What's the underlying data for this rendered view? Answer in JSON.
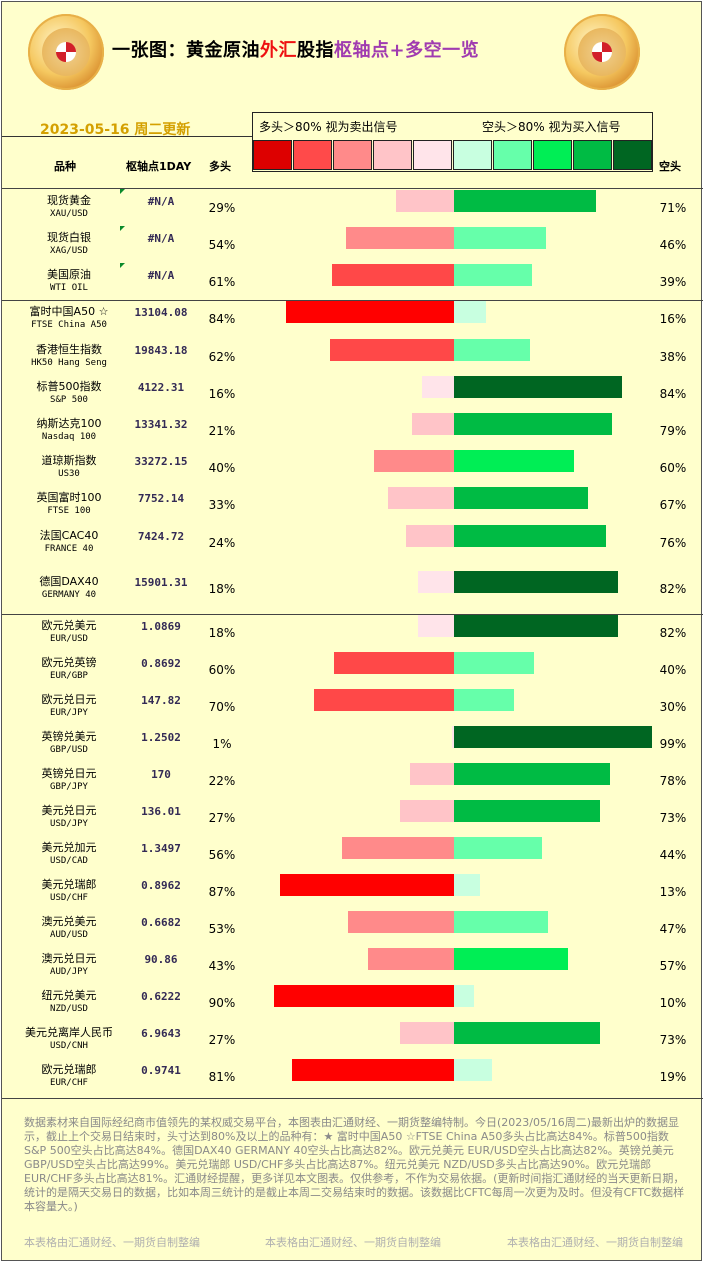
{
  "header": {
    "title_parts": [
      {
        "text": "一张图：黄金原油",
        "style": "normal"
      },
      {
        "text": "外汇",
        "style": "red"
      },
      {
        "text": "股指",
        "style": "normal"
      },
      {
        "text": "枢轴点",
        "style": "purple"
      },
      {
        "text": "+多空一览",
        "style": "purple"
      }
    ],
    "date": "2023-05-16 周二更新"
  },
  "legend": {
    "long_text": "多头＞80%  视为卖出信号",
    "short_text": "空头＞80%  视为买入信号",
    "swatches": [
      "#dd0000",
      "#ff4a4a",
      "#ff8a8a",
      "#ffc4c8",
      "#ffe4ea",
      "#c8ffe0",
      "#66ffaa",
      "#00ee55",
      "#00bb44",
      "#006622"
    ]
  },
  "columns": {
    "name": "品种",
    "pivot": "枢轴点1DAY",
    "long": "多头",
    "short": "空头"
  },
  "chart_data": {
    "type": "bar",
    "series_names": [
      "多头",
      "空头"
    ],
    "categories": [
      "现货黄金 XAU/USD",
      "现货白银 XAG/USD",
      "美国原油 WTI OIL",
      "富时中国A50 ☆ FTSE China A50",
      "香港恒生指数 HK50 Hang Seng",
      "标普500指数 S&P 500",
      "纳斯达克100 Nasdaq 100",
      "道琼斯指数 US30",
      "英国富时100 FTSE 100",
      "法国CAC40 FRANCE 40",
      "德国DAX40 GERMANY 40",
      "欧元兑美元 EUR/USD",
      "欧元兑英镑 EUR/GBP",
      "欧元兑日元 EUR/JPY",
      "英镑兑美元 GBP/USD",
      "英镑兑日元 GBP/JPY",
      "美元兑日元 USD/JPY",
      "美元兑加元 USD/CAD",
      "美元兑瑞郎 USD/CHF",
      "澳元兑美元 AUD/USD",
      "澳元兑日元 AUD/JPY",
      "纽元兑美元 NZD/USD",
      "美元兑离岸人民币 USD/CNH",
      "欧元兑瑞郎 EUR/CHF"
    ],
    "rows": [
      {
        "name": "现货黄金",
        "code": "XAU/USD",
        "pivot": "#N/A",
        "long": 29,
        "short": 71,
        "mark": true
      },
      {
        "name": "现货白银",
        "code": "XAG/USD",
        "pivot": "#N/A",
        "long": 54,
        "short": 46,
        "mark": true
      },
      {
        "name": "美国原油",
        "code": "WTI OIL",
        "pivot": "#N/A",
        "long": 61,
        "short": 39,
        "mark": true
      },
      {
        "name": "富时中国A50 ☆",
        "code": "FTSE China A50",
        "pivot": "13104.08",
        "long": 84,
        "short": 16,
        "mark": false
      },
      {
        "name": "香港恒生指数",
        "code": "HK50 Hang Seng",
        "pivot": "19843.18",
        "long": 62,
        "short": 38,
        "mark": false
      },
      {
        "name": "标普500指数",
        "code": "S&P 500",
        "pivot": "4122.31",
        "long": 16,
        "short": 84,
        "mark": false
      },
      {
        "name": "纳斯达克100",
        "code": "Nasdaq 100",
        "pivot": "13341.32",
        "long": 21,
        "short": 79,
        "mark": false
      },
      {
        "name": "道琼斯指数",
        "code": "US30",
        "pivot": "33272.15",
        "long": 40,
        "short": 60,
        "mark": false
      },
      {
        "name": "英国富时100",
        "code": "FTSE 100",
        "pivot": "7752.14",
        "long": 33,
        "short": 67,
        "mark": false
      },
      {
        "name": "法国CAC40",
        "code": "FRANCE 40",
        "pivot": "7424.72",
        "long": 24,
        "short": 76,
        "mark": false
      },
      {
        "name": "德国DAX40",
        "code": "GERMANY 40",
        "pivot": "15901.31",
        "long": 18,
        "short": 82,
        "mark": false
      },
      {
        "name": "欧元兑美元",
        "code": "EUR/USD",
        "pivot": "1.0869",
        "long": 18,
        "short": 82,
        "mark": false
      },
      {
        "name": "欧元兑英镑",
        "code": "EUR/GBP",
        "pivot": "0.8692",
        "long": 60,
        "short": 40,
        "mark": false
      },
      {
        "name": "欧元兑日元",
        "code": "EUR/JPY",
        "pivot": "147.82",
        "long": 70,
        "short": 30,
        "mark": false
      },
      {
        "name": "英镑兑美元",
        "code": "GBP/USD",
        "pivot": "1.2502",
        "long": 1,
        "short": 99,
        "mark": false
      },
      {
        "name": "英镑兑日元",
        "code": "GBP/JPY",
        "pivot": "170",
        "long": 22,
        "short": 78,
        "mark": false
      },
      {
        "name": "美元兑日元",
        "code": "USD/JPY",
        "pivot": "136.01",
        "long": 27,
        "short": 73,
        "mark": false
      },
      {
        "name": "美元兑加元",
        "code": "USD/CAD",
        "pivot": "1.3497",
        "long": 56,
        "short": 44,
        "mark": false
      },
      {
        "name": "美元兑瑞郎",
        "code": "USD/CHF",
        "pivot": "0.8962",
        "long": 87,
        "short": 13,
        "mark": false
      },
      {
        "name": "澳元兑美元",
        "code": "AUD/USD",
        "pivot": "0.6682",
        "long": 53,
        "short": 47,
        "mark": false
      },
      {
        "name": "澳元兑日元",
        "code": "AUD/JPY",
        "pivot": "90.86",
        "long": 43,
        "short": 57,
        "mark": false
      },
      {
        "name": "纽元兑美元",
        "code": "NZD/USD",
        "pivot": "0.6222",
        "long": 90,
        "short": 10,
        "mark": false
      },
      {
        "name": "美元兑离岸人民币",
        "code": "USD/CNH",
        "pivot": "6.9643",
        "long": 27,
        "short": 73,
        "mark": false
      },
      {
        "name": "欧元兑瑞郎",
        "code": "EUR/CHF",
        "pivot": "0.9741",
        "long": 81,
        "short": 19,
        "mark": false
      }
    ],
    "xlim": [
      0,
      100
    ]
  },
  "note": "数据素材来自国际经纪商市值领先的某权威交易平台，本图表由汇通财经、一期货整编特制。今日(2023/05/16周二)最新出炉的数据显示，截止上个交易日结束时，头寸达到80%及以上的品种有：★ 富时中国A50 ☆FTSE China A50多头占比高达84%。标普500指数 S&P 500空头占比高达84%。德国DAX40     GERMANY 40空头占比高达82%。欧元兑美元 EUR/USD空头占比高达82%。英镑兑美元 GBP/USD空头占比高达99%。美元兑瑞郎 USD/CHF多头占比高达87%。纽元兑美元 NZD/USD多头占比高达90%。欧元兑瑞郎 EUR/CHF多头占比高达81%。汇通财经提醒，更多详见本文图表。仅供参考，不作为交易依据。(更新时间指汇通财经的当天更新日期，统计的是隔天交易日的数据，比如本周三统计的是截止本周二交易结束时的数据。该数据比CFTC每周一次更为及时。但没有CFTC数据样本容量大。)",
  "footer": [
    "本表格由汇通财经、一期货自制整编",
    "本表格由汇通财经、一期货自制整编",
    "本表格由汇通财经、一期货自制整编"
  ]
}
